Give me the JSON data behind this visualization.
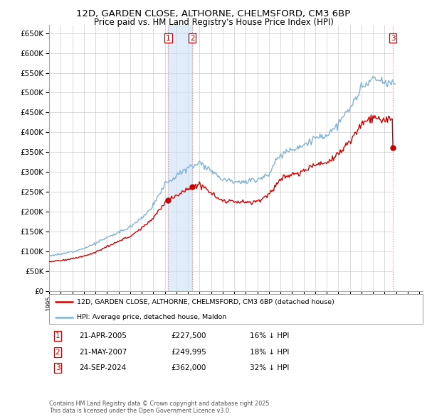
{
  "title_line1": "12D, GARDEN CLOSE, ALTHORNE, CHELMSFORD, CM3 6BP",
  "title_line2": "Price paid vs. HM Land Registry's House Price Index (HPI)",
  "ylim": [
    0,
    670000
  ],
  "yticks": [
    0,
    50000,
    100000,
    150000,
    200000,
    250000,
    300000,
    350000,
    400000,
    450000,
    500000,
    550000,
    600000,
    650000
  ],
  "xlim_start": 1995.0,
  "xlim_end": 2027.3,
  "transactions": [
    {
      "label": "1",
      "date": "21-APR-2005",
      "price": 227500,
      "x": 2005.3,
      "pct": "16%"
    },
    {
      "label": "2",
      "date": "21-MAY-2007",
      "price": 249995,
      "x": 2007.38,
      "pct": "18%"
    },
    {
      "label": "3",
      "date": "24-SEP-2024",
      "price": 362000,
      "x": 2024.72,
      "pct": "32%"
    }
  ],
  "shade_between_1_2": true,
  "shade_after_3_start": 2024.72,
  "hpi_color": "#7fb2d8",
  "price_color": "#cc0000",
  "grid_color": "#cccccc",
  "background_color": "#ffffff",
  "legend_house_label": "12D, GARDEN CLOSE, ALTHORNE, CHELMSFORD, CM3 6BP (detached house)",
  "legend_hpi_label": "HPI: Average price, detached house, Maldon",
  "footnote": "Contains HM Land Registry data © Crown copyright and database right 2025.\nThis data is licensed under the Open Government Licence v3.0."
}
